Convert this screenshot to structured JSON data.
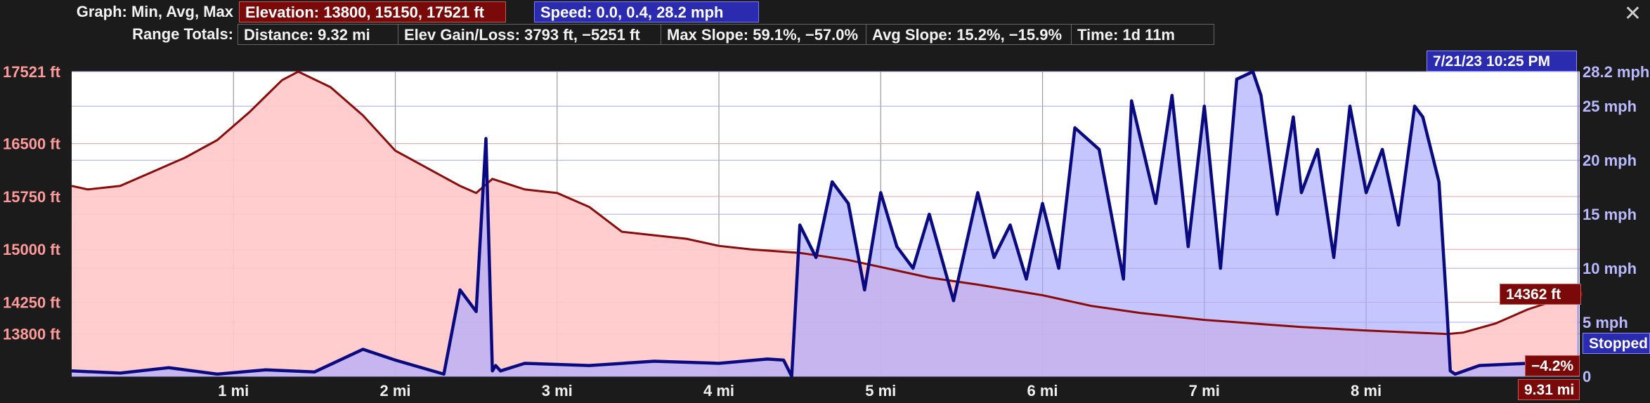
{
  "header": {
    "graph_label": "Graph: Min, Avg, Max",
    "elevation_chip": "Elevation: 13800, 15150, 17521 ft",
    "speed_chip": "Speed: 0.0, 0.4, 28.2 mph",
    "range_label": "Range Totals:",
    "distance": "Distance: 9.32 mi",
    "elev_gain_loss": "Elev Gain/Loss: 3793 ft, −5251 ft",
    "max_slope": "Max Slope: 59.1%, −57.0%",
    "avg_slope": "Avg Slope: 15.2%, −15.9%",
    "time": "Time: 1d 11m",
    "close": "✕"
  },
  "cursor": {
    "timestamp": "7/21/23 10:25 PM",
    "elevation": "14362 ft",
    "stopped": "Stopped:",
    "slope": "−4.2%",
    "distance": "9.31 mi"
  },
  "colors": {
    "elevation_line": "#8a0b0b",
    "elevation_fill": "#ffc8c8",
    "speed_line": "#0a0a80",
    "speed_fill": "#b4b4ff",
    "background": "#1b1b1b"
  },
  "chart_data": {
    "type": "area",
    "x_unit": "mi",
    "xlim": [
      0,
      9.32
    ],
    "x_ticks": [
      1,
      2,
      3,
      4,
      5,
      6,
      7,
      8
    ],
    "x_tick_labels": [
      "1 mi",
      "2 mi",
      "3 mi",
      "4 mi",
      "5 mi",
      "6 mi",
      "7 mi",
      "8 mi"
    ],
    "y_left": {
      "unit": "ft",
      "lim": [
        13200,
        17521
      ],
      "ticks": [
        13800,
        14250,
        15000,
        15750,
        16500,
        17521
      ],
      "tick_labels": [
        "13800 ft",
        "14250 ft",
        "15000 ft",
        "15750 ft",
        "16500 ft",
        "17521 ft"
      ]
    },
    "y_right": {
      "unit": "mph",
      "lim": [
        0,
        28.2
      ],
      "ticks": [
        0,
        5,
        10,
        15,
        20,
        25,
        28.2
      ],
      "tick_labels": [
        "0",
        "5 mph",
        "10 mph",
        "15 mph",
        "20 mph",
        "25 mph",
        "28.2 mph"
      ]
    },
    "grid": true,
    "series": [
      {
        "name": "Elevation",
        "axis": "left",
        "x": [
          0,
          0.1,
          0.3,
          0.5,
          0.7,
          0.9,
          1.1,
          1.3,
          1.4,
          1.6,
          1.8,
          2.0,
          2.2,
          2.4,
          2.5,
          2.6,
          2.8,
          3.0,
          3.2,
          3.4,
          3.6,
          3.8,
          4.0,
          4.2,
          4.5,
          4.8,
          5.0,
          5.3,
          5.6,
          6.0,
          6.3,
          6.6,
          7.0,
          7.3,
          7.6,
          8.0,
          8.3,
          8.5,
          8.6,
          8.8,
          9.0,
          9.2,
          9.31
        ],
        "y": [
          15900,
          15850,
          15900,
          16100,
          16300,
          16550,
          16950,
          17400,
          17521,
          17300,
          16900,
          16400,
          16150,
          15900,
          15800,
          16000,
          15850,
          15800,
          15600,
          15250,
          15200,
          15150,
          15050,
          15000,
          14950,
          14850,
          14750,
          14600,
          14500,
          14350,
          14200,
          14100,
          14000,
          13950,
          13900,
          13850,
          13820,
          13800,
          13820,
          13950,
          14150,
          14300,
          14362
        ]
      },
      {
        "name": "Speed",
        "axis": "right",
        "x": [
          0,
          0.3,
          0.6,
          0.9,
          1.2,
          1.5,
          1.8,
          2.0,
          2.3,
          2.4,
          2.5,
          2.56,
          2.6,
          2.62,
          2.65,
          2.8,
          3.2,
          3.6,
          4.0,
          4.3,
          4.4,
          4.45,
          4.5,
          4.6,
          4.7,
          4.8,
          4.9,
          5.0,
          5.1,
          5.2,
          5.3,
          5.45,
          5.6,
          5.7,
          5.8,
          5.9,
          6.0,
          6.1,
          6.2,
          6.35,
          6.5,
          6.55,
          6.7,
          6.8,
          6.9,
          7.0,
          7.1,
          7.2,
          7.3,
          7.35,
          7.45,
          7.55,
          7.6,
          7.7,
          7.8,
          7.9,
          8.0,
          8.1,
          8.2,
          8.3,
          8.35,
          8.45,
          8.5,
          8.52,
          8.55,
          8.7,
          9.0,
          9.2,
          9.31
        ],
        "y": [
          0.5,
          0.3,
          0.8,
          0.2,
          0.6,
          0.4,
          2.5,
          1.5,
          0.2,
          8.0,
          6.0,
          22.0,
          0.5,
          1.0,
          0.5,
          1.2,
          1.0,
          1.4,
          1.2,
          1.6,
          1.5,
          0.0,
          14.0,
          11.0,
          18.0,
          16.0,
          8.0,
          17.0,
          12.0,
          10.0,
          15.0,
          7.0,
          17.0,
          11.0,
          14.0,
          9.0,
          16.0,
          10.0,
          23.0,
          21.0,
          9.0,
          25.5,
          16.0,
          26.0,
          12.0,
          25.0,
          10.0,
          27.5,
          28.2,
          26.0,
          15.0,
          24.0,
          17.0,
          21.0,
          11.0,
          25.0,
          17.0,
          21.0,
          14.0,
          25.0,
          24.0,
          18.0,
          6.0,
          0.5,
          0.2,
          1.0,
          1.2,
          0.8,
          0.6
        ]
      }
    ],
    "cursor_x": 9.31
  }
}
